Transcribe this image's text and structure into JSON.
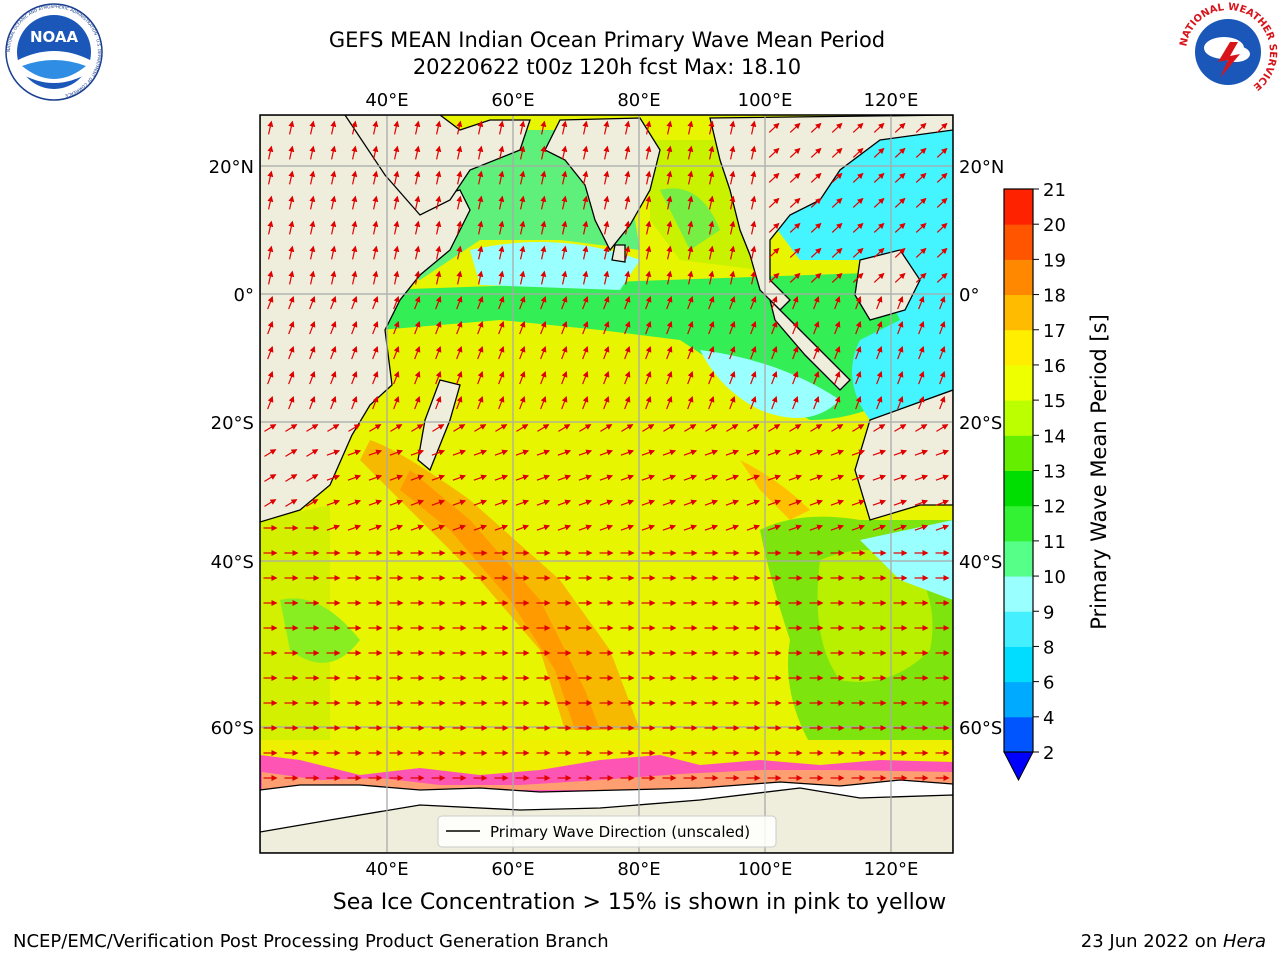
{
  "title": {
    "line1": "GEFS MEAN Indian Ocean Primary Wave Mean Period",
    "line2": "20220622 t00z 120h fcst   Max: 18.10"
  },
  "map": {
    "region": "Indian Ocean",
    "lon_ticks_top": [
      "40°E",
      "60°E",
      "80°E",
      "100°E",
      "120°E"
    ],
    "lon_ticks_bottom": [
      "40°E",
      "60°E",
      "80°E",
      "100°E",
      "120°E"
    ],
    "lat_ticks_left": [
      "20°N",
      "0°",
      "20°S",
      "40°S",
      "60°S"
    ],
    "lat_ticks_right": [
      "20°N",
      "0°",
      "20°S",
      "40°S",
      "60°S"
    ],
    "lon_range": [
      20,
      130
    ],
    "lat_range": [
      -72,
      27
    ],
    "land_color": "#efeedd",
    "ice_color": "#ff44c8",
    "arrow_color": "#ff0000",
    "grid": true,
    "legend": {
      "label": "Primary Wave Direction (unscaled)",
      "position": "bottom-center"
    }
  },
  "colorbar": {
    "label": "Primary Wave Mean Period [s]",
    "tick_labels": [
      "2",
      "4",
      "6",
      "8",
      "9",
      "10",
      "11",
      "12",
      "13",
      "14",
      "15",
      "16",
      "17",
      "18",
      "19",
      "20",
      "21"
    ],
    "colors": [
      "#0055ff",
      "#00aaff",
      "#00ddff",
      "#44f0ff",
      "#99ffff",
      "#55ff88",
      "#33f233",
      "#00dd00",
      "#66ee00",
      "#bbff00",
      "#eeff00",
      "#ffee00",
      "#ffbb00",
      "#ff8800",
      "#ff5500",
      "#ff2200"
    ],
    "extend_low_color": "#0000ff"
  },
  "ice_note": "Sea Ice Concentration > 15% is shown in pink to yellow",
  "footer": {
    "left": "NCEP/EMC/Verification Post Processing Product Generation Branch",
    "right_date": "23 Jun 2022 on ",
    "right_host": "Hera"
  },
  "logos": {
    "noaa": "NOAA",
    "noaa_ring": "NATIONAL OCEANIC AND ATMOSPHERIC ADMINISTRATION · U.S. DEPARTMENT OF COMMERCE",
    "nws_ring": "NATIONAL WEATHER SERVICE"
  }
}
